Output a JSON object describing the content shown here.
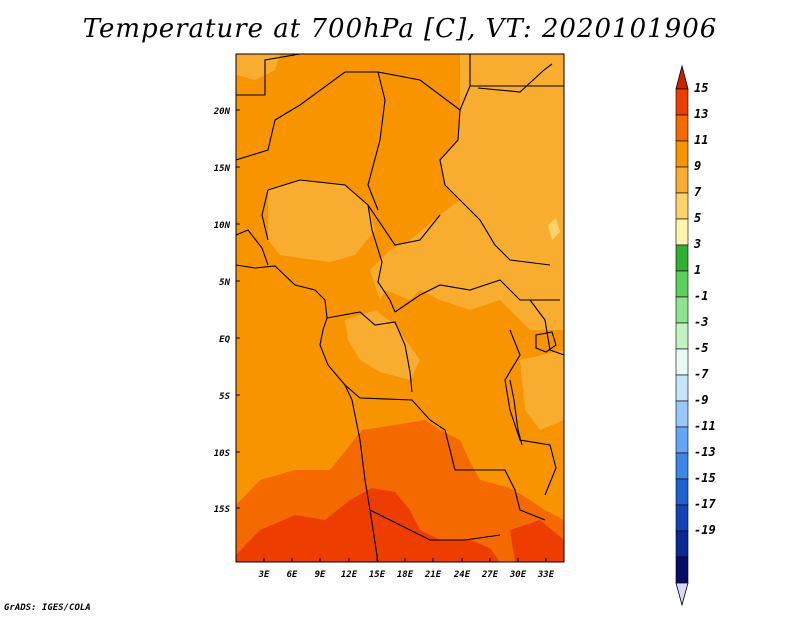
{
  "title": "Temperature at 700hPa [C], VT: 2020101906",
  "footer": "GrADS: IGES/COLA",
  "map": {
    "lat_labels": [
      "20N",
      "15N",
      "10N",
      "5N",
      "EQ",
      "5S",
      "10S",
      "15S"
    ],
    "lon_labels": [
      "3E",
      "6E",
      "9E",
      "12E",
      "15E",
      "18E",
      "21E",
      "24E",
      "27E",
      "30E",
      "33E"
    ]
  },
  "colorbar": {
    "labels": [
      "15",
      "13",
      "11",
      "9",
      "7",
      "5",
      "3",
      "1",
      "-1",
      "-3",
      "-5",
      "-7",
      "-9",
      "-11",
      "-13",
      "-15",
      "-17",
      "-19"
    ],
    "colors": [
      "#cc2200",
      "#ee3d00",
      "#f46a00",
      "#f79400",
      "#f9ad30",
      "#fed26b",
      "#fff3b0",
      "#30b030",
      "#5ccf5c",
      "#8ee38e",
      "#c3f2c3",
      "#e8faf4",
      "#c4e4ff",
      "#96c8ff",
      "#64a6f5",
      "#3c86e8",
      "#1e62d2",
      "#1442b8",
      "#0a2896",
      "#060d66",
      "#d8d8ff"
    ]
  }
}
